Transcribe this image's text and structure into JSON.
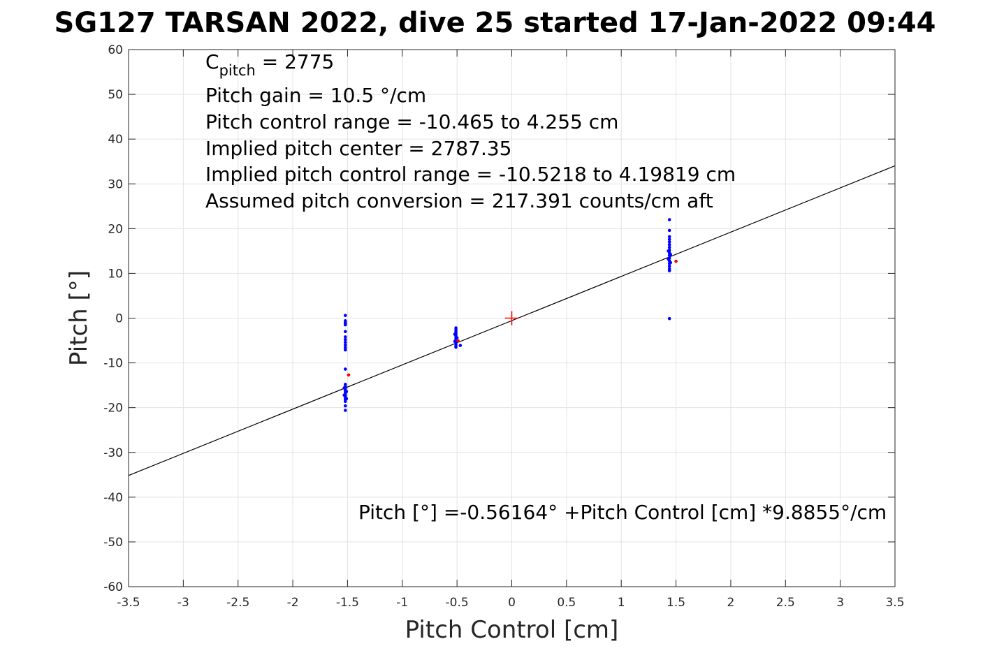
{
  "chart_data": {
    "type": "scatter",
    "title": "SG127 TARSAN 2022, dive 25 started 17-Jan-2022 09:44",
    "xlabel": "Pitch Control [cm]",
    "ylabel": "Pitch [°]",
    "xlim": [
      -3.5,
      3.5
    ],
    "ylim": [
      -60,
      60
    ],
    "xticks": [
      -3.5,
      -3,
      -2.5,
      -2,
      -1.5,
      -1,
      -0.5,
      0,
      0.5,
      1,
      1.5,
      2,
      2.5,
      3,
      3.5
    ],
    "xtick_labels": [
      "-3.5",
      "-3",
      "-2.5",
      "-2",
      "-1.5",
      "-1",
      "-0.5",
      "0",
      "0.5",
      "1",
      "1.5",
      "2",
      "2.5",
      "3",
      "3.5"
    ],
    "yticks": [
      -60,
      -50,
      -40,
      -30,
      -20,
      -10,
      0,
      10,
      20,
      30,
      40,
      50,
      60
    ],
    "ytick_labels": [
      "-60",
      "-50",
      "-40",
      "-30",
      "-20",
      "-10",
      "0",
      "10",
      "20",
      "30",
      "40",
      "50",
      "60"
    ],
    "grid": true,
    "annotations": {
      "c_pitch_main": "C",
      "c_pitch_sub": "pitch",
      "c_pitch_value": " = 2775",
      "lines": [
        "Pitch gain = 10.5 °/cm",
        "Pitch control range = -10.465 to 4.255 cm",
        "Implied pitch center = 2787.35",
        "Implied pitch control range = -10.5218 to 4.19819 cm",
        "Assumed pitch conversion = 217.391 counts/cm aft"
      ],
      "fit_equation": "Pitch [°] =-0.56164° +Pitch Control [cm] *9.8855°/cm"
    },
    "fit_line": {
      "intercept": -0.56164,
      "slope": 9.8855,
      "color": "#000000"
    },
    "center_marker": {
      "x": 0,
      "y": 0,
      "color": "#ff0000"
    },
    "series": [
      {
        "color": "#0000ff",
        "points": [
          [
            -1.52,
            0.6
          ],
          [
            -1.52,
            -0.6
          ],
          [
            -1.52,
            -1.0
          ],
          [
            -1.52,
            -1.3
          ],
          [
            -1.52,
            -1.5
          ],
          [
            -1.52,
            -3.0
          ],
          [
            -1.52,
            -4.2
          ],
          [
            -1.52,
            -4.8
          ],
          [
            -1.52,
            -5.4
          ],
          [
            -1.52,
            -6.0
          ],
          [
            -1.52,
            -6.6
          ],
          [
            -1.52,
            -7.1
          ],
          [
            -1.52,
            -11.4
          ],
          [
            -1.52,
            -14.8
          ],
          [
            -1.52,
            -15.3
          ],
          [
            -1.52,
            -15.8
          ],
          [
            -1.52,
            -16.2
          ],
          [
            -1.52,
            -16.6
          ],
          [
            -1.52,
            -17.0
          ],
          [
            -1.52,
            -17.4
          ],
          [
            -1.52,
            -17.8
          ],
          [
            -1.52,
            -18.2
          ],
          [
            -1.52,
            -18.6
          ],
          [
            -1.52,
            -19.6
          ],
          [
            -1.52,
            -20.6
          ],
          [
            -1.53,
            -15.6
          ],
          [
            -1.51,
            -16.4
          ],
          [
            -1.53,
            -17.2
          ],
          [
            -1.51,
            -18.0
          ],
          [
            -0.51,
            -2.2
          ],
          [
            -0.51,
            -2.6
          ],
          [
            -0.51,
            -3.0
          ],
          [
            -0.51,
            -3.4
          ],
          [
            -0.51,
            -3.8
          ],
          [
            -0.51,
            -4.2
          ],
          [
            -0.51,
            -4.6
          ],
          [
            -0.51,
            -5.0
          ],
          [
            -0.51,
            -5.4
          ],
          [
            -0.51,
            -5.8
          ],
          [
            -0.51,
            -6.2
          ],
          [
            -0.51,
            -6.5
          ],
          [
            -0.52,
            -3.6
          ],
          [
            -0.5,
            -4.4
          ],
          [
            -0.52,
            -5.2
          ],
          [
            -0.47,
            -6.1
          ],
          [
            1.44,
            22.0
          ],
          [
            1.44,
            19.6
          ],
          [
            1.44,
            18.2
          ],
          [
            1.44,
            17.6
          ],
          [
            1.44,
            17.0
          ],
          [
            1.44,
            16.4
          ],
          [
            1.44,
            15.8
          ],
          [
            1.44,
            15.2
          ],
          [
            1.44,
            14.6
          ],
          [
            1.44,
            14.0
          ],
          [
            1.44,
            13.4
          ],
          [
            1.44,
            12.8
          ],
          [
            1.44,
            12.2
          ],
          [
            1.44,
            11.6
          ],
          [
            1.44,
            11.0
          ],
          [
            1.44,
            10.6
          ],
          [
            1.43,
            15.0
          ],
          [
            1.45,
            14.2
          ],
          [
            1.43,
            13.2
          ],
          [
            1.45,
            12.4
          ],
          [
            1.44,
            -0.1
          ]
        ]
      },
      {
        "color": "#ff0000",
        "points": [
          [
            -1.49,
            -12.7
          ],
          [
            -0.49,
            -5.1
          ],
          [
            1.5,
            12.7
          ]
        ]
      }
    ]
  }
}
